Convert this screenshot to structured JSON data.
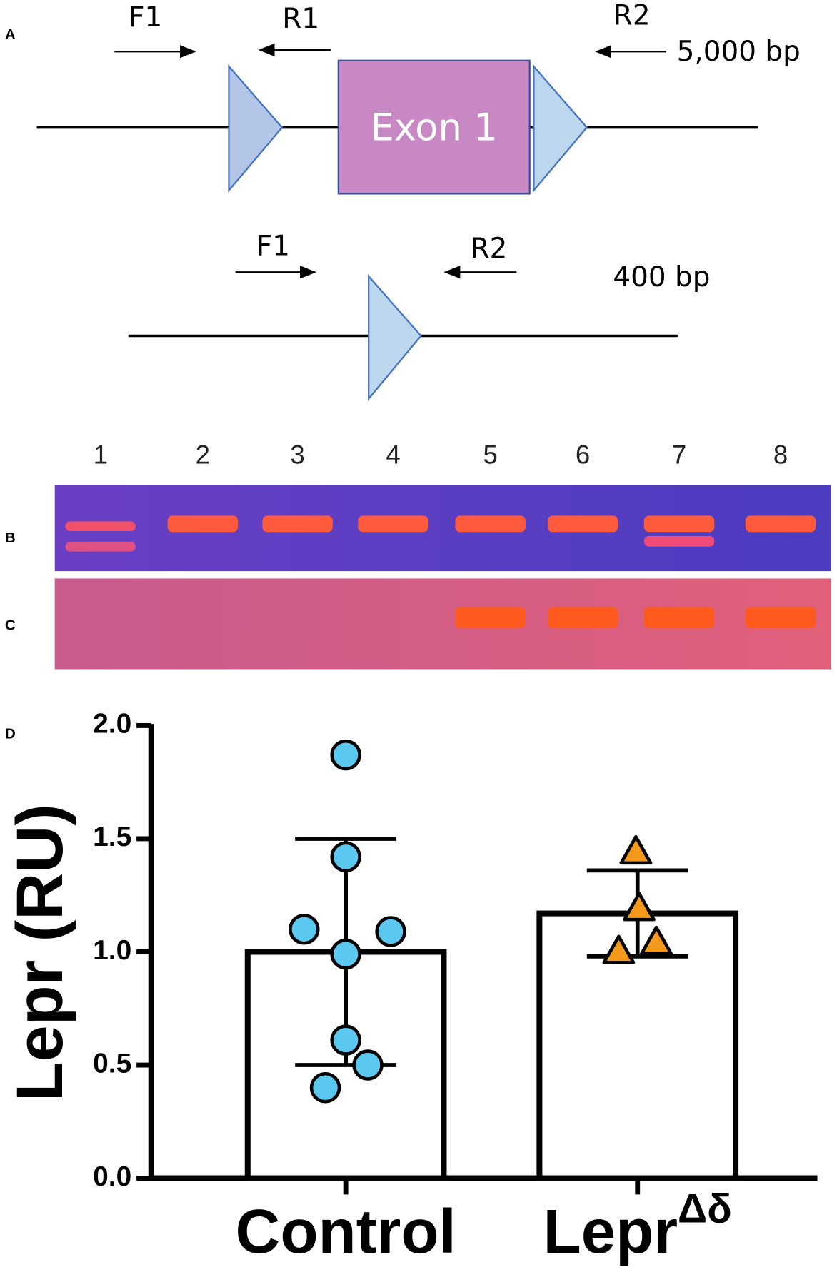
{
  "panels": {
    "a": "A",
    "b": "B",
    "c": "C",
    "d": "D"
  },
  "diagram": {
    "top": {
      "exon": "Exon 1",
      "primers": [
        "F1",
        "R1",
        "R2"
      ],
      "size": "5,000 bp"
    },
    "bottom": {
      "primers": [
        "F1",
        "R2"
      ],
      "size": "400 bp"
    }
  },
  "gel": {
    "lanes": [
      "1",
      "2",
      "3",
      "4",
      "5",
      "6",
      "7",
      "8"
    ]
  },
  "chart_data": {
    "type": "bar",
    "y_label": "Lepr (RU)",
    "categories": [
      {
        "label": "Control"
      },
      {
        "label": "Lepr",
        "superscript": "Δδ"
      }
    ],
    "values": [
      1.0,
      1.17
    ],
    "errors": [
      0.5,
      0.19
    ],
    "color": "#ffffff",
    "points": [
      [
        1.87,
        1.42,
        1.1,
        1.09,
        0.99,
        0.61,
        0.5,
        0.4
      ],
      [
        1.44,
        1.19,
        1.0,
        1.04
      ]
    ],
    "point_colors": [
      "#5bc8f0",
      "#f39a1d"
    ],
    "point_markers": [
      "circle",
      "triangle"
    ],
    "ylim": [
      0,
      2
    ],
    "yticks": [
      {
        "value": 0,
        "label": "0.0"
      },
      {
        "value": 0.5,
        "label": "0.5"
      },
      {
        "value": 1,
        "label": "1.0"
      },
      {
        "value": 1.5,
        "label": "1.5"
      },
      {
        "value": 2,
        "label": "2.0"
      }
    ]
  }
}
